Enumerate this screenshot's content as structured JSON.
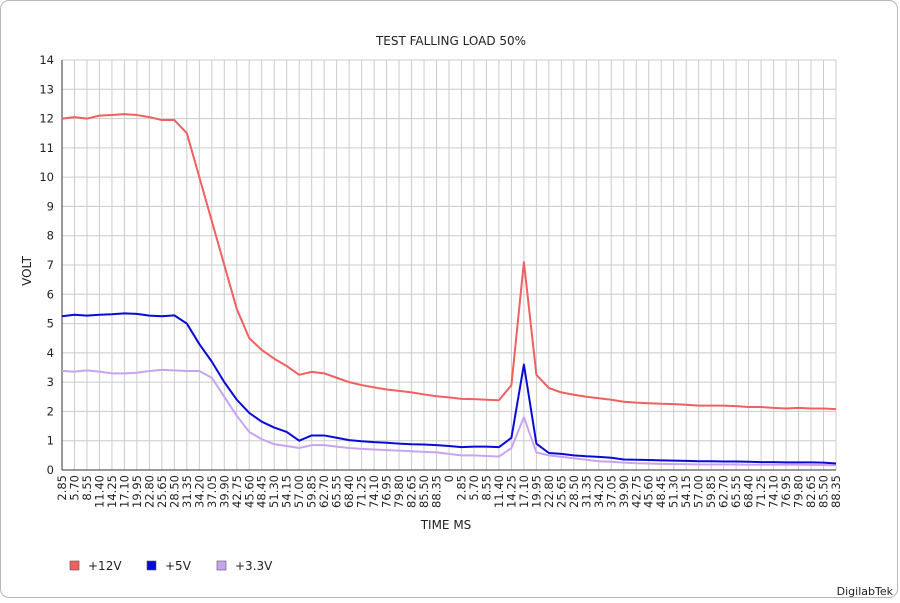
{
  "chart_data": {
    "type": "line",
    "title": "TEST FALLING LOAD 50%",
    "xlabel": "TIME MS",
    "ylabel": "VOLT",
    "ylim": [
      0,
      14
    ],
    "yticks": [
      0,
      1,
      2,
      3,
      4,
      5,
      6,
      7,
      8,
      9,
      10,
      11,
      12,
      13,
      14
    ],
    "grid": true,
    "legend_position": "bottom-left",
    "x": [
      "2.85",
      "5.70",
      "8.55",
      "11.40",
      "14.25",
      "17.10",
      "19.95",
      "22.80",
      "25.65",
      "28.50",
      "31.35",
      "34.20",
      "37.05",
      "39.90",
      "42.75",
      "45.60",
      "48.45",
      "51.30",
      "54.15",
      "57.00",
      "59.85",
      "62.70",
      "65.55",
      "68.40",
      "71.25",
      "74.10",
      "76.95",
      "79.80",
      "82.65",
      "85.50",
      "88.35",
      "0",
      "2.85",
      "5.70",
      "8.55",
      "11.40",
      "14.25",
      "17.10",
      "19.95",
      "22.80",
      "25.65",
      "28.50",
      "31.35",
      "34.20",
      "37.05",
      "39.90",
      "42.75",
      "45.60",
      "48.45",
      "51.30",
      "54.15",
      "57.00",
      "59.85",
      "62.70",
      "65.55",
      "68.40",
      "71.25",
      "74.10",
      "76.95",
      "79.80",
      "82.65",
      "85.50",
      "88.35"
    ],
    "series": [
      {
        "name": "+12V",
        "color": "#f06060",
        "values": [
          12.0,
          12.05,
          12.0,
          12.1,
          12.12,
          12.15,
          12.12,
          12.05,
          11.95,
          11.95,
          11.5,
          10.0,
          8.5,
          7.0,
          5.5,
          4.5,
          4.1,
          3.8,
          3.55,
          3.25,
          3.35,
          3.3,
          3.15,
          3.0,
          2.9,
          2.82,
          2.75,
          2.7,
          2.65,
          2.58,
          2.52,
          2.48,
          2.43,
          2.42,
          2.4,
          2.38,
          2.9,
          7.1,
          3.25,
          2.8,
          2.65,
          2.57,
          2.5,
          2.45,
          2.4,
          2.33,
          2.3,
          2.28,
          2.26,
          2.25,
          2.23,
          2.2,
          2.2,
          2.2,
          2.18,
          2.15,
          2.15,
          2.12,
          2.1,
          2.12,
          2.1,
          2.1,
          2.08
        ]
      },
      {
        "name": "+5V",
        "color": "#0a0ad8",
        "values": [
          5.25,
          5.3,
          5.27,
          5.3,
          5.32,
          5.35,
          5.33,
          5.27,
          5.25,
          5.28,
          5.0,
          4.3,
          3.7,
          3.0,
          2.4,
          1.95,
          1.65,
          1.45,
          1.3,
          1.0,
          1.18,
          1.18,
          1.1,
          1.02,
          0.98,
          0.95,
          0.93,
          0.9,
          0.88,
          0.87,
          0.85,
          0.82,
          0.78,
          0.8,
          0.8,
          0.78,
          1.1,
          3.6,
          0.9,
          0.58,
          0.55,
          0.5,
          0.47,
          0.45,
          0.42,
          0.36,
          0.35,
          0.34,
          0.33,
          0.32,
          0.31,
          0.3,
          0.3,
          0.29,
          0.29,
          0.28,
          0.27,
          0.27,
          0.26,
          0.26,
          0.26,
          0.25,
          0.22
        ]
      },
      {
        "name": "+3.3V",
        "color": "#c8a4f0",
        "values": [
          3.38,
          3.36,
          3.4,
          3.36,
          3.3,
          3.3,
          3.32,
          3.38,
          3.42,
          3.4,
          3.38,
          3.38,
          3.15,
          2.5,
          1.85,
          1.3,
          1.05,
          0.88,
          0.82,
          0.75,
          0.85,
          0.85,
          0.8,
          0.75,
          0.72,
          0.7,
          0.68,
          0.66,
          0.64,
          0.62,
          0.6,
          0.55,
          0.5,
          0.5,
          0.48,
          0.46,
          0.75,
          1.8,
          0.6,
          0.5,
          0.45,
          0.4,
          0.35,
          0.3,
          0.28,
          0.25,
          0.23,
          0.22,
          0.21,
          0.2,
          0.2,
          0.19,
          0.19,
          0.19,
          0.19,
          0.18,
          0.18,
          0.18,
          0.18,
          0.18,
          0.17,
          0.17,
          0.16
        ]
      }
    ]
  },
  "brand": "DigilabTek"
}
